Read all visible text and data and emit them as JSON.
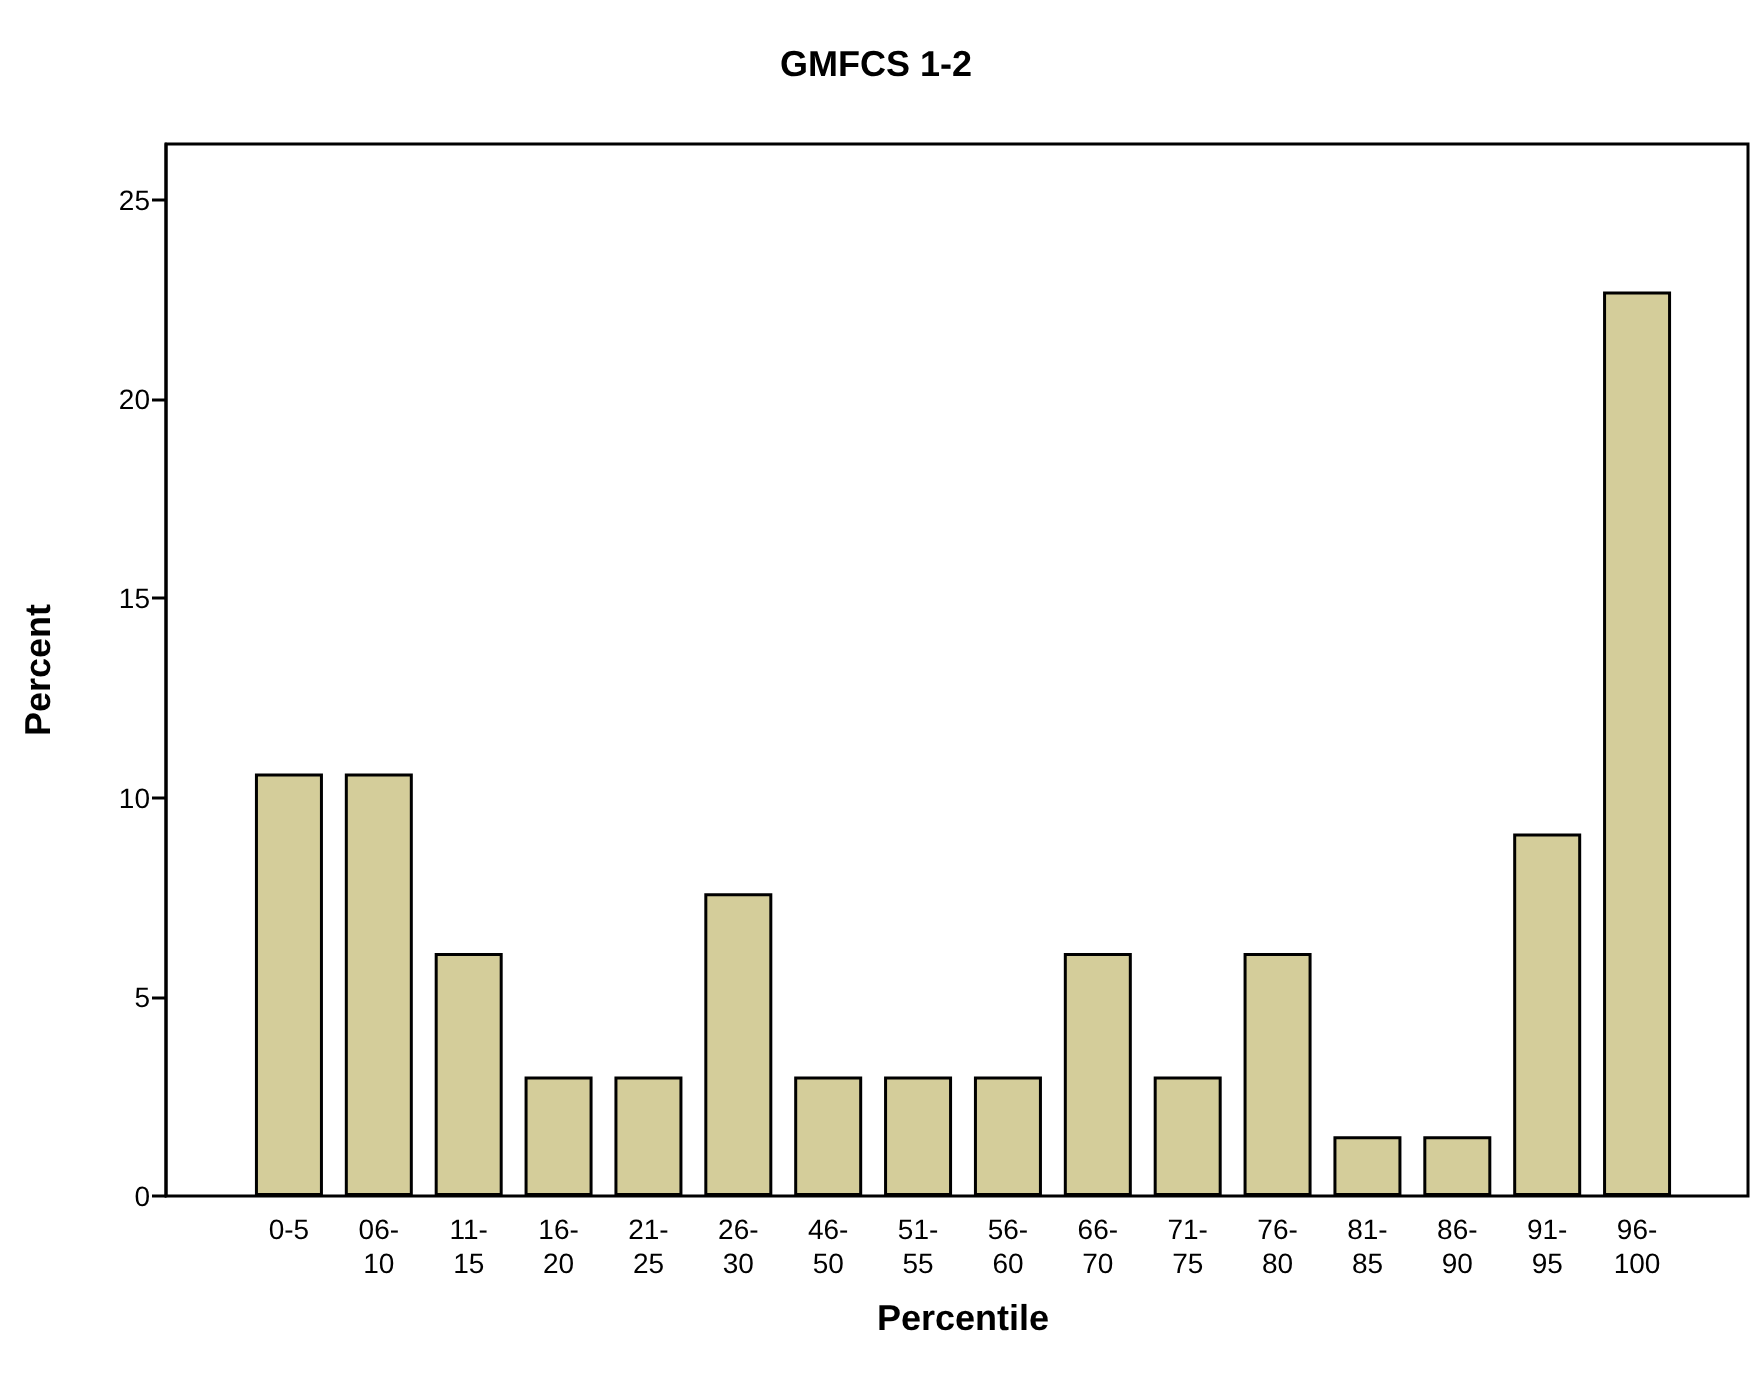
{
  "chart_data": {
    "type": "bar",
    "title": "GMFCS 1-2",
    "xlabel": "Percentile",
    "ylabel": "Percent",
    "categories": [
      "0-5",
      "06-10",
      "11-15",
      "16-20",
      "21-25",
      "26-30",
      "46-50",
      "51-55",
      "56-60",
      "66-70",
      "71-75",
      "76-80",
      "81-85",
      "86-90",
      "91-95",
      "96-100"
    ],
    "values": [
      10.6,
      10.6,
      6.1,
      3.0,
      3.0,
      7.6,
      3.0,
      3.0,
      3.0,
      6.1,
      3.0,
      6.1,
      1.5,
      1.5,
      9.1,
      22.7
    ],
    "color": "#d4cd9a",
    "ylim": [
      0,
      26.4
    ],
    "yticks": [
      0,
      5,
      10,
      15,
      20,
      25
    ],
    "grid": false
  }
}
